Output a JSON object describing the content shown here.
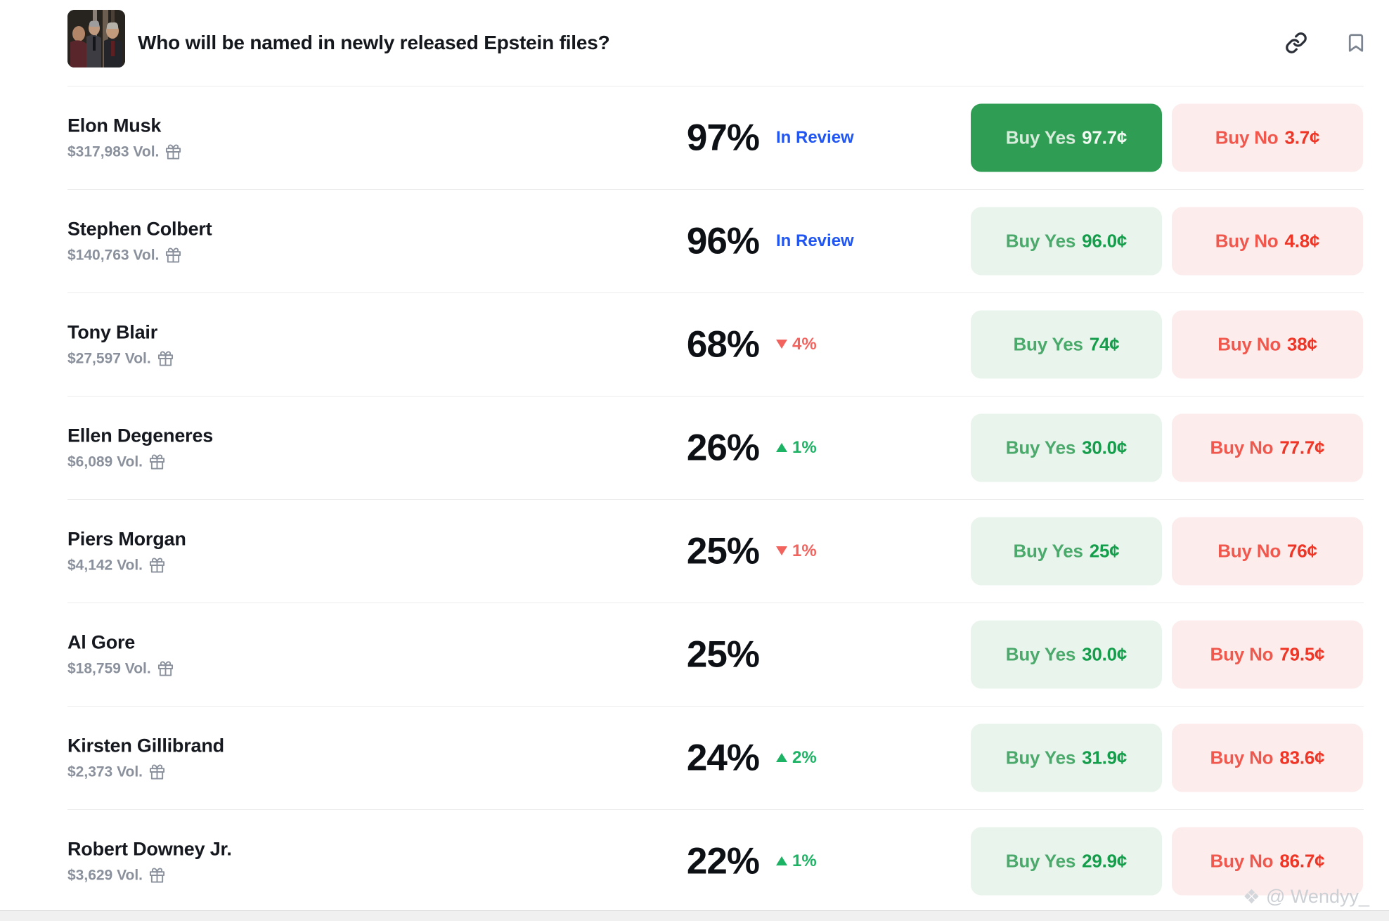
{
  "header": {
    "title": "Who will be named in newly released Epstein files?",
    "link_icon": "link-icon",
    "bookmark_icon": "bookmark-icon"
  },
  "colors": {
    "yes_solid_bg": "#2f9e54",
    "yes_light_bg": "#e9f4ec",
    "yes_text": "#149e4b",
    "no_light_bg": "#fcecec",
    "no_text": "#ee3526",
    "status_blue": "#2156f2",
    "up_green": "#1db364",
    "down_red": "#f2635e"
  },
  "watermark": {
    "icon": "❖",
    "text": "@ Wendyy_"
  },
  "rows": [
    {
      "name": "Elon Musk",
      "volume": "$317,983 Vol.",
      "percent": "97%",
      "status": "In Review",
      "change_dir": null,
      "change_value": null,
      "yes_label": "Buy Yes",
      "yes_price": "97.7¢",
      "no_label": "Buy No",
      "no_price": "3.7¢"
    },
    {
      "name": "Stephen Colbert",
      "volume": "$140,763 Vol.",
      "percent": "96%",
      "status": "In Review",
      "change_dir": null,
      "change_value": null,
      "yes_label": "Buy Yes",
      "yes_price": "96.0¢",
      "no_label": "Buy No",
      "no_price": "4.8¢"
    },
    {
      "name": "Tony Blair",
      "volume": "$27,597 Vol.",
      "percent": "68%",
      "status": null,
      "change_dir": "down",
      "change_value": "4%",
      "yes_label": "Buy Yes",
      "yes_price": "74¢",
      "no_label": "Buy No",
      "no_price": "38¢"
    },
    {
      "name": "Ellen Degeneres",
      "volume": "$6,089 Vol.",
      "percent": "26%",
      "status": null,
      "change_dir": "up",
      "change_value": "1%",
      "yes_label": "Buy Yes",
      "yes_price": "30.0¢",
      "no_label": "Buy No",
      "no_price": "77.7¢"
    },
    {
      "name": "Piers Morgan",
      "volume": "$4,142 Vol.",
      "percent": "25%",
      "status": null,
      "change_dir": "down",
      "change_value": "1%",
      "yes_label": "Buy Yes",
      "yes_price": "25¢",
      "no_label": "Buy No",
      "no_price": "76¢"
    },
    {
      "name": "Al Gore",
      "volume": "$18,759 Vol.",
      "percent": "25%",
      "status": null,
      "change_dir": null,
      "change_value": null,
      "yes_label": "Buy Yes",
      "yes_price": "30.0¢",
      "no_label": "Buy No",
      "no_price": "79.5¢"
    },
    {
      "name": "Kirsten Gillibrand",
      "volume": "$2,373 Vol.",
      "percent": "24%",
      "status": null,
      "change_dir": "up",
      "change_value": "2%",
      "yes_label": "Buy Yes",
      "yes_price": "31.9¢",
      "no_label": "Buy No",
      "no_price": "83.6¢"
    },
    {
      "name": "Robert Downey Jr.",
      "volume": "$3,629 Vol.",
      "percent": "22%",
      "status": null,
      "change_dir": "up",
      "change_value": "1%",
      "yes_label": "Buy Yes",
      "yes_price": "29.9¢",
      "no_label": "Buy No",
      "no_price": "86.7¢"
    }
  ]
}
